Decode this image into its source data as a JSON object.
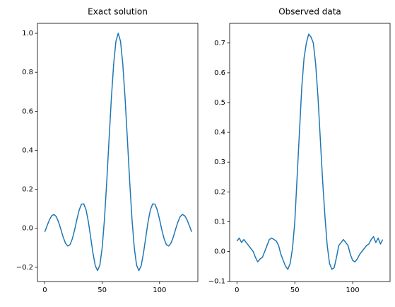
{
  "chart_data": [
    {
      "type": "line",
      "title": "Exact solution",
      "x": [
        0,
        2,
        4,
        6,
        8,
        10,
        12,
        14,
        16,
        18,
        20,
        22,
        24,
        26,
        28,
        30,
        32,
        34,
        36,
        38,
        40,
        42,
        44,
        46,
        48,
        50,
        52,
        54,
        56,
        58,
        60,
        62,
        64,
        66,
        68,
        70,
        72,
        74,
        76,
        78,
        80,
        82,
        84,
        86,
        88,
        90,
        92,
        94,
        96,
        98,
        100,
        102,
        104,
        106,
        108,
        110,
        112,
        114,
        116,
        118,
        120,
        122,
        124,
        126,
        128
      ],
      "series": [
        {
          "color": "#1f77b4",
          "values": [
            -0.018,
            0.013,
            0.043,
            0.064,
            0.071,
            0.06,
            0.032,
            -0.005,
            -0.045,
            -0.076,
            -0.091,
            -0.084,
            -0.054,
            -0.008,
            0.046,
            0.094,
            0.124,
            0.125,
            0.094,
            0.033,
            -0.047,
            -0.128,
            -0.192,
            -0.217,
            -0.189,
            -0.1,
            0.047,
            0.239,
            0.455,
            0.665,
            0.841,
            0.959,
            1,
            0.959,
            0.841,
            0.665,
            0.455,
            0.239,
            0.047,
            -0.1,
            -0.189,
            -0.217,
            -0.192,
            -0.128,
            -0.047,
            0.033,
            0.094,
            0.125,
            0.124,
            0.094,
            0.046,
            -0.008,
            -0.054,
            -0.084,
            -0.091,
            -0.076,
            -0.045,
            -0.005,
            0.032,
            0.06,
            0.071,
            0.064,
            0.043,
            0.013,
            -0.018
          ]
        }
      ],
      "xlim": [
        -6.4,
        133.4
      ],
      "xticks": [
        0,
        50,
        100
      ],
      "ylim": [
        -0.273,
        1.051
      ],
      "yticks": [
        {
          "value": -0.2,
          "label": "−0.2"
        },
        {
          "value": 0,
          "label": "0.0"
        },
        0.2,
        0.4,
        0.6,
        0.8,
        {
          "value": 1,
          "label": "1.0"
        }
      ]
    },
    {
      "type": "line",
      "title": "Observed data",
      "x": [
        0,
        2,
        4,
        6,
        8,
        10,
        12,
        14,
        16,
        18,
        20,
        22,
        24,
        26,
        28,
        30,
        32,
        34,
        36,
        38,
        40,
        42,
        44,
        46,
        48,
        50,
        52,
        54,
        56,
        58,
        60,
        62,
        64,
        66,
        68,
        70,
        72,
        74,
        76,
        78,
        80,
        82,
        84,
        86,
        88,
        90,
        92,
        94,
        96,
        98,
        100,
        102,
        104,
        106,
        108,
        110,
        112,
        114,
        116,
        118,
        120,
        122,
        124,
        126
      ],
      "series": [
        {
          "color": "#1f77b4",
          "values": [
            0.035,
            0.045,
            0.03,
            0.04,
            0.03,
            0.02,
            0.01,
            0.0,
            -0.02,
            -0.035,
            -0.025,
            -0.02,
            0.0,
            0.02,
            0.04,
            0.045,
            0.04,
            0.035,
            0.02,
            -0.01,
            -0.03,
            -0.05,
            -0.06,
            -0.04,
            0.01,
            0.1,
            0.25,
            0.4,
            0.55,
            0.65,
            0.7,
            0.73,
            0.72,
            0.7,
            0.63,
            0.52,
            0.38,
            0.24,
            0.12,
            0.02,
            -0.04,
            -0.06,
            -0.055,
            -0.02,
            0.02,
            0.03,
            0.04,
            0.03,
            0.02,
            -0.01,
            -0.03,
            -0.035,
            -0.025,
            -0.01,
            0.0,
            0.01,
            0.02,
            0.025,
            0.04,
            0.05,
            0.03,
            0.045,
            0.025,
            0.04
          ]
        }
      ],
      "xlim": [
        -6.3,
        132.3
      ],
      "xticks": [
        0,
        50,
        100
      ],
      "ylim": [
        -0.101,
        0.766
      ],
      "yticks": [
        {
          "value": -0.1,
          "label": "−0.1"
        },
        {
          "value": 0,
          "label": "0.0"
        },
        0.1,
        0.2,
        0.3,
        0.4,
        0.5,
        0.6,
        0.7
      ]
    }
  ]
}
